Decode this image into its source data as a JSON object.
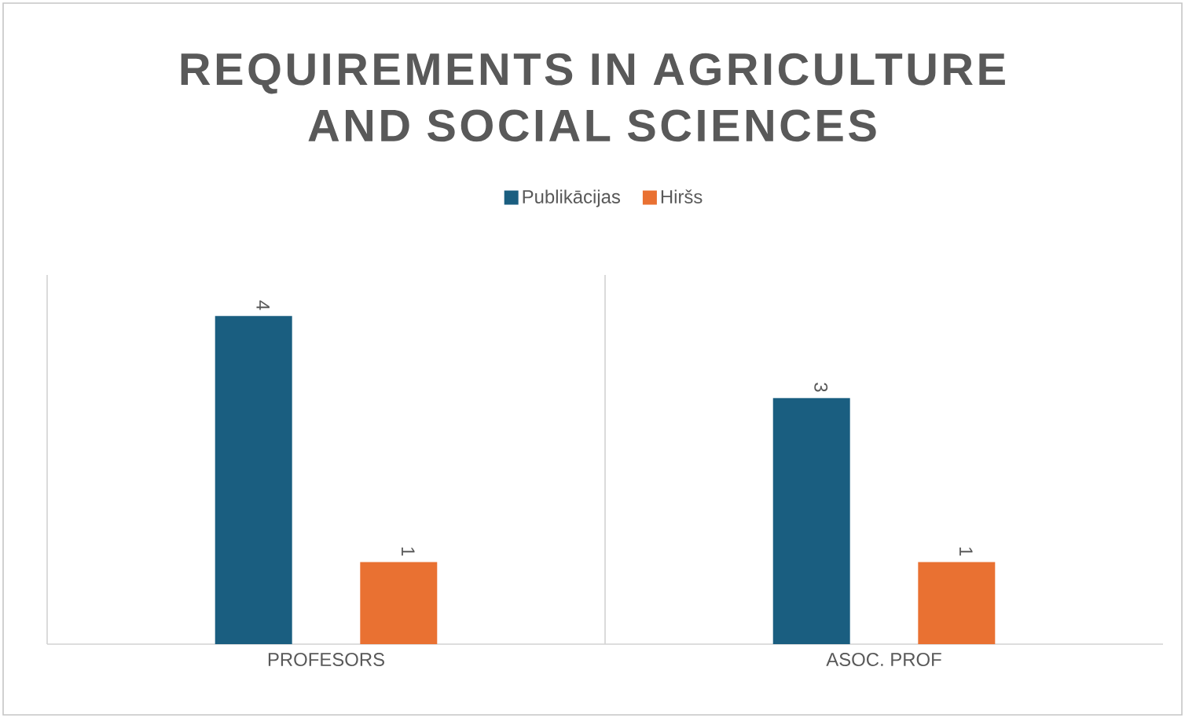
{
  "chart_data": {
    "type": "bar",
    "title": "REQUIREMENTS IN AGRICULTURE AND SOCIAL SCIENCES",
    "categories": [
      "PROFESORS",
      "ASOC. PROF"
    ],
    "series": [
      {
        "name": "Publikācijas",
        "color": "#1a5e80",
        "values": [
          4,
          3
        ]
      },
      {
        "name": "Hiršs",
        "color": "#e97132",
        "values": [
          1,
          1
        ]
      }
    ],
    "data_labels": true,
    "legend": "top"
  }
}
